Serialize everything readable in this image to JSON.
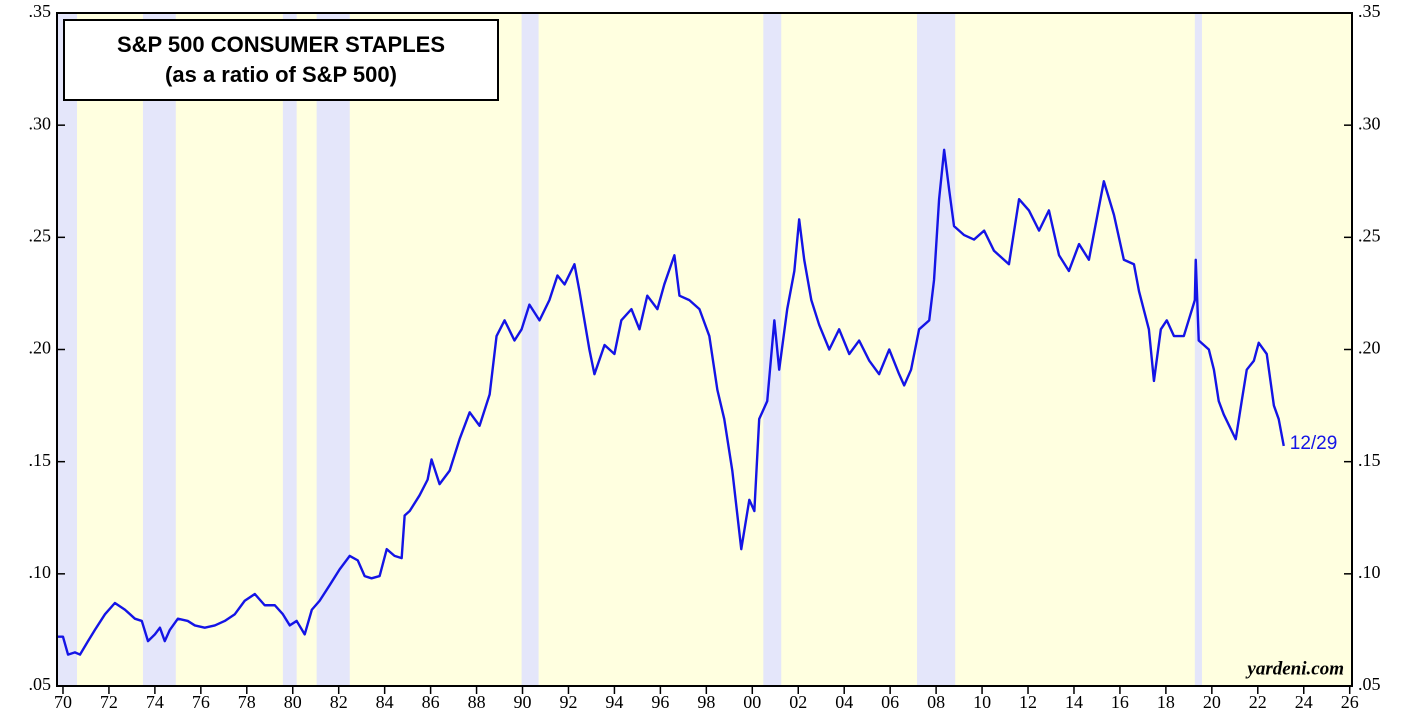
{
  "chart_data": {
    "type": "line",
    "title": "S&P 500 CONSUMER STAPLES",
    "subtitle": "(as a ratio of S&P 500)",
    "end_label": "12/29",
    "source": "yardeni.com",
    "color": "#1414e6",
    "background": "#ffffe0",
    "shading": {
      "color": "#e4e6fa",
      "bands": [
        [
          1969.74,
          1970.61
        ],
        [
          1973.48,
          1974.91
        ],
        [
          1979.57,
          1980.17
        ],
        [
          1981.04,
          1982.48
        ],
        [
          1989.96,
          1990.7
        ],
        [
          2000.48,
          2001.26
        ],
        [
          2007.17,
          2008.83
        ],
        [
          2019.26,
          2019.57
        ]
      ]
    },
    "xlim": [
      1969.74,
      2026.1
    ],
    "ylim": [
      0.05,
      0.35
    ],
    "xticks": [
      {
        "value": 1970,
        "label": "70"
      },
      {
        "value": 1972,
        "label": "72"
      },
      {
        "value": 1974,
        "label": "74"
      },
      {
        "value": 1976,
        "label": "76"
      },
      {
        "value": 1978,
        "label": "78"
      },
      {
        "value": 1980,
        "label": "80"
      },
      {
        "value": 1982,
        "label": "82"
      },
      {
        "value": 1984,
        "label": "84"
      },
      {
        "value": 1986,
        "label": "86"
      },
      {
        "value": 1988,
        "label": "88"
      },
      {
        "value": 1990,
        "label": "90"
      },
      {
        "value": 1992,
        "label": "92"
      },
      {
        "value": 1994,
        "label": "94"
      },
      {
        "value": 1996,
        "label": "96"
      },
      {
        "value": 1998,
        "label": "98"
      },
      {
        "value": 2000,
        "label": "00"
      },
      {
        "value": 2002,
        "label": "02"
      },
      {
        "value": 2004,
        "label": "04"
      },
      {
        "value": 2006,
        "label": "06"
      },
      {
        "value": 2008,
        "label": "08"
      },
      {
        "value": 2010,
        "label": "10"
      },
      {
        "value": 2012,
        "label": "12"
      },
      {
        "value": 2014,
        "label": "14"
      },
      {
        "value": 2016,
        "label": "16"
      },
      {
        "value": 2018,
        "label": "18"
      },
      {
        "value": 2020,
        "label": "20"
      },
      {
        "value": 2022,
        "label": "22"
      },
      {
        "value": 2024,
        "label": "24"
      },
      {
        "value": 2026,
        "label": "26"
      }
    ],
    "yticks": [
      {
        "value": 0.05,
        "label": ".05"
      },
      {
        "value": 0.1,
        "label": ".10"
      },
      {
        "value": 0.15,
        "label": ".15"
      },
      {
        "value": 0.2,
        "label": ".20"
      },
      {
        "value": 0.25,
        "label": ".25"
      },
      {
        "value": 0.3,
        "label": ".30"
      },
      {
        "value": 0.35,
        "label": ".35"
      }
    ],
    "x": [
      1969.74,
      1970.0,
      1970.22,
      1970.52,
      1970.74,
      1971.09,
      1971.39,
      1971.83,
      1972.26,
      1972.7,
      1973.13,
      1973.43,
      1973.7,
      1974.0,
      1974.22,
      1974.43,
      1974.65,
      1975.0,
      1975.43,
      1975.74,
      1976.17,
      1976.61,
      1977.04,
      1977.48,
      1977.91,
      1978.35,
      1978.78,
      1979.22,
      1979.57,
      1979.87,
      1980.17,
      1980.52,
      1980.83,
      1981.17,
      1981.61,
      1982.04,
      1982.48,
      1982.83,
      1983.13,
      1983.43,
      1983.78,
      1984.09,
      1984.43,
      1984.74,
      1984.87,
      1985.09,
      1985.52,
      1985.87,
      1986.04,
      1986.39,
      1986.83,
      1987.26,
      1987.7,
      1988.13,
      1988.57,
      1988.87,
      1989.22,
      1989.65,
      1989.96,
      1990.3,
      1990.74,
      1991.17,
      1991.52,
      1991.83,
      1992.26,
      1992.48,
      1992.91,
      1993.13,
      1993.57,
      1994.0,
      1994.3,
      1994.74,
      1995.09,
      1995.43,
      1995.87,
      1996.17,
      1996.61,
      1996.83,
      1997.26,
      1997.7,
      1998.13,
      1998.48,
      1998.78,
      1999.13,
      1999.52,
      1999.87,
      2000.09,
      2000.3,
      2000.65,
      2000.96,
      2001.17,
      2001.52,
      2001.83,
      2002.04,
      2002.26,
      2002.57,
      2002.91,
      2003.35,
      2003.78,
      2004.22,
      2004.65,
      2005.09,
      2005.52,
      2005.96,
      2006.39,
      2006.61,
      2006.91,
      2007.26,
      2007.7,
      2007.91,
      2008.13,
      2008.35,
      2008.57,
      2008.78,
      2009.22,
      2009.65,
      2010.09,
      2010.52,
      2011.17,
      2011.61,
      2012.04,
      2012.48,
      2012.91,
      2013.35,
      2013.78,
      2014.22,
      2014.65,
      2015.3,
      2015.74,
      2016.17,
      2016.61,
      2016.83,
      2017.26,
      2017.48,
      2017.78,
      2018.04,
      2018.35,
      2018.78,
      2019.26,
      2019.3,
      2019.43,
      2019.87,
      2020.09,
      2020.3,
      2020.52,
      2021.04,
      2021.3,
      2021.52,
      2021.83,
      2022.04,
      2022.39,
      2022.7,
      2022.91,
      2023.13
    ],
    "values": [
      0.072,
      0.072,
      0.064,
      0.065,
      0.064,
      0.07,
      0.075,
      0.082,
      0.087,
      0.084,
      0.08,
      0.079,
      0.07,
      0.073,
      0.076,
      0.07,
      0.075,
      0.08,
      0.079,
      0.077,
      0.076,
      0.077,
      0.079,
      0.082,
      0.088,
      0.091,
      0.086,
      0.086,
      0.082,
      0.077,
      0.079,
      0.073,
      0.084,
      0.088,
      0.095,
      0.102,
      0.108,
      0.106,
      0.099,
      0.098,
      0.099,
      0.111,
      0.108,
      0.107,
      0.126,
      0.128,
      0.135,
      0.142,
      0.151,
      0.14,
      0.146,
      0.16,
      0.172,
      0.166,
      0.18,
      0.206,
      0.213,
      0.204,
      0.209,
      0.22,
      0.213,
      0.222,
      0.233,
      0.229,
      0.238,
      0.226,
      0.2,
      0.189,
      0.202,
      0.198,
      0.213,
      0.218,
      0.209,
      0.224,
      0.218,
      0.229,
      0.242,
      0.224,
      0.222,
      0.218,
      0.206,
      0.182,
      0.169,
      0.146,
      0.111,
      0.133,
      0.128,
      0.169,
      0.177,
      0.213,
      0.191,
      0.218,
      0.235,
      0.258,
      0.24,
      0.222,
      0.211,
      0.2,
      0.209,
      0.198,
      0.204,
      0.195,
      0.189,
      0.2,
      0.189,
      0.184,
      0.191,
      0.209,
      0.213,
      0.231,
      0.267,
      0.289,
      0.271,
      0.255,
      0.251,
      0.249,
      0.253,
      0.244,
      0.238,
      0.267,
      0.262,
      0.253,
      0.262,
      0.242,
      0.235,
      0.247,
      0.24,
      0.275,
      0.26,
      0.24,
      0.238,
      0.226,
      0.209,
      0.186,
      0.209,
      0.213,
      0.206,
      0.206,
      0.222,
      0.24,
      0.204,
      0.2,
      0.191,
      0.177,
      0.171,
      0.16,
      0.177,
      0.191,
      0.195,
      0.203,
      0.198,
      0.175,
      0.169,
      0.157
    ]
  }
}
